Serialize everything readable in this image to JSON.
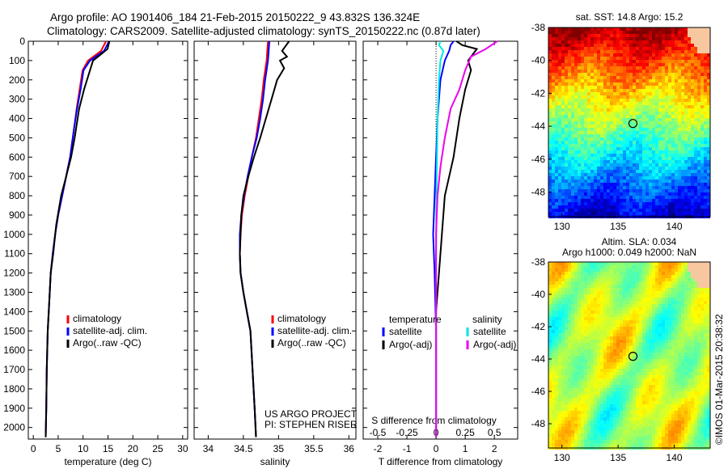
{
  "header": {
    "line1": "Argo profile: AO 1901406_184 21-Feb-2015 20150222_9 43.832S 136.324E",
    "line2": "Climatology: CARS2009. Satellite-adjusted climatology: synTS_20150222.nc (0.87d later)"
  },
  "colors": {
    "climatology": "#ff0000",
    "satellite": "#0000ff",
    "argo": "#000000",
    "salinity_sat": "#00e5e5",
    "salinity_argo": "#ee00ee"
  },
  "chart_data": [
    {
      "type": "line",
      "panel": "temperature",
      "xlabel": "temperature (deg C)",
      "ylabel": "",
      "xlim": [
        -1,
        31
      ],
      "ylim": [
        2060,
        0
      ],
      "xticks": [
        "0",
        "5",
        "10",
        "15",
        "20",
        "25",
        "30"
      ],
      "yticks": [
        "0",
        "100",
        "200",
        "300",
        "400",
        "500",
        "600",
        "700",
        "800",
        "900",
        "1000",
        "1100",
        "1200",
        "1300",
        "1400",
        "1500",
        "1600",
        "1700",
        "1800",
        "1900",
        "2000"
      ],
      "legend": [
        "climatology",
        "satellite-adj. clim.",
        "Argo(..raw -QC)"
      ],
      "series": [
        {
          "name": "climatology",
          "color": "#ff0000",
          "x": [
            14.6,
            14.2,
            13.6,
            11.0,
            9.9,
            9.3,
            8.7,
            8.2,
            7.4,
            6.6,
            5.8,
            5.0,
            4.4,
            3.9,
            3.5,
            3.2,
            2.9,
            2.7,
            2.6,
            2.5
          ],
          "y": [
            0,
            20,
            50,
            100,
            150,
            250,
            350,
            450,
            600,
            700,
            800,
            900,
            1000,
            1100,
            1200,
            1350,
            1500,
            1700,
            1900,
            2050
          ]
        },
        {
          "name": "satellite-adj. clim.",
          "color": "#0000ff",
          "x": [
            15.2,
            14.8,
            14.2,
            11.4,
            10.1,
            9.5,
            8.8,
            8.2,
            7.4,
            6.6,
            5.8,
            5.0,
            4.4,
            3.9,
            3.5,
            3.2,
            2.9,
            2.7,
            2.6,
            2.5
          ],
          "y": [
            0,
            20,
            50,
            100,
            150,
            250,
            350,
            450,
            600,
            700,
            800,
            900,
            1000,
            1100,
            1200,
            1350,
            1500,
            1700,
            1900,
            2050
          ]
        },
        {
          "name": "Argo(..raw -QC)",
          "color": "#000000",
          "x": [
            15.3,
            15.1,
            14.9,
            13.0,
            12.0,
            11.4,
            10.2,
            9.2,
            8.3,
            7.6,
            6.6,
            5.6,
            4.6,
            4.0,
            3.5,
            3.2,
            2.9,
            2.7,
            2.6,
            2.5
          ],
          "y": [
            0,
            20,
            40,
            80,
            100,
            150,
            250,
            350,
            500,
            600,
            700,
            800,
            950,
            1100,
            1200,
            1350,
            1500,
            1700,
            1900,
            2050
          ]
        }
      ]
    },
    {
      "type": "line",
      "panel": "salinity",
      "xlabel": "salinity",
      "ylabel": "",
      "xlim": [
        33.8,
        36.1
      ],
      "ylim": [
        2060,
        0
      ],
      "xticks": [
        "34",
        "34.5",
        "35",
        "35.5",
        "36"
      ],
      "legend": [
        "climatology",
        "satellite-adj. clim.",
        "Argo(..raw -QC)"
      ],
      "annotation": [
        "US ARGO PROJECT",
        "PI: STEPHEN RISER"
      ],
      "series": [
        {
          "name": "climatology",
          "color": "#ff0000",
          "x": [
            34.85,
            34.84,
            34.83,
            34.79,
            34.76,
            34.72,
            34.68,
            34.62,
            34.57,
            34.52,
            34.48,
            34.46,
            34.45,
            34.46,
            34.5,
            34.55,
            34.6,
            34.63,
            34.66,
            34.68
          ],
          "y": [
            0,
            50,
            100,
            200,
            300,
            400,
            500,
            600,
            700,
            800,
            900,
            1000,
            1100,
            1200,
            1300,
            1400,
            1500,
            1700,
            1900,
            2050
          ]
        },
        {
          "name": "satellite-adj. clim.",
          "color": "#0000ff",
          "x": [
            34.87,
            34.86,
            34.85,
            34.81,
            34.78,
            34.74,
            34.69,
            34.62,
            34.56,
            34.51,
            34.47,
            34.45,
            34.45,
            34.46,
            34.5,
            34.55,
            34.6,
            34.63,
            34.66,
            34.68
          ],
          "y": [
            0,
            50,
            100,
            200,
            300,
            400,
            500,
            600,
            700,
            800,
            900,
            1000,
            1100,
            1200,
            1300,
            1400,
            1500,
            1700,
            1900,
            2050
          ]
        },
        {
          "name": "Argo(..raw -QC)",
          "color": "#000000",
          "x": [
            35.15,
            35.05,
            35.12,
            35.02,
            35.08,
            34.98,
            34.9,
            34.82,
            34.74,
            34.65,
            34.57,
            34.5,
            34.47,
            34.46,
            34.45,
            34.46,
            34.5,
            34.55,
            34.6,
            34.63,
            34.66,
            34.68
          ],
          "y": [
            0,
            50,
            80,
            100,
            140,
            200,
            300,
            400,
            500,
            600,
            700,
            800,
            900,
            1000,
            1100,
            1200,
            1300,
            1400,
            1500,
            1700,
            1900,
            2050
          ]
        }
      ]
    },
    {
      "type": "line",
      "panel": "difference",
      "xlabel": "T difference from climatology",
      "xlabel_top": "S difference from climatology",
      "xlim": [
        -2.5,
        2.8
      ],
      "ylim": [
        2060,
        0
      ],
      "xticks": [
        "-2",
        "-1",
        "0",
        "1",
        "2"
      ],
      "xticks_top": [
        "-0.5",
        "-0.25",
        "0",
        "0.25",
        "0.5"
      ],
      "legend_titles": [
        "temperature",
        "salinity"
      ],
      "legend": [
        "satellite",
        "Argo(-adj)",
        "satellite",
        "Argo(-adj)"
      ],
      "series": [
        {
          "name": "T satellite",
          "color": "#0000ff",
          "x": [
            0.6,
            0.5,
            0.45,
            0.3,
            0.15,
            0.05,
            0.0,
            -0.05,
            -0.1,
            -0.05,
            0.0,
            0.0,
            0.0
          ],
          "y": [
            0,
            20,
            50,
            100,
            200,
            400,
            600,
            800,
            1000,
            1200,
            1500,
            1800,
            2050
          ]
        },
        {
          "name": "T Argo(-adj)",
          "color": "#000000",
          "x": [
            0.7,
            0.9,
            1.4,
            1.1,
            1.2,
            1.0,
            0.8,
            0.6,
            0.3,
            0.2,
            0.1,
            0.0,
            0.0,
            0.0
          ],
          "y": [
            0,
            20,
            40,
            100,
            150,
            250,
            400,
            600,
            800,
            1000,
            1200,
            1400,
            1700,
            2050
          ]
        },
        {
          "name": "S satellite",
          "color": "#00e5e5",
          "x": [
            0.15,
            0.1,
            0.25,
            0.15,
            0.1,
            0.05,
            0.03,
            0.01,
            0.0,
            0.0
          ],
          "y": [
            0,
            20,
            50,
            100,
            200,
            400,
            600,
            800,
            1100,
            2050
          ]
        },
        {
          "name": "S Argo(-adj)",
          "color": "#ee00ee",
          "x": [
            2.1,
            1.9,
            1.7,
            1.2,
            1.0,
            0.8,
            0.5,
            0.3,
            0.15,
            0.05,
            0.0,
            0.0
          ],
          "y": [
            0,
            20,
            40,
            80,
            150,
            250,
            350,
            500,
            650,
            800,
            1000,
            2050
          ]
        }
      ]
    }
  ],
  "maps": {
    "sst": {
      "title": "sat. SST: 14.8 Argo: 15.2",
      "yticks": [
        "-38",
        "-40",
        "-42",
        "-44",
        "-46",
        "-48"
      ],
      "xticks": [
        "130",
        "135",
        "140"
      ],
      "lat_range": [
        -38,
        -49.5
      ],
      "lon_range": [
        128.8,
        143.2
      ],
      "argo_position": {
        "lat": -43.832,
        "lon": 136.324
      }
    },
    "sla": {
      "title_line1": "Altim. SLA: 0.034",
      "title_line2": "Argo h1000: 0.049 h2000: NaN",
      "yticks": [
        "-38",
        "-40",
        "-42",
        "-44",
        "-46",
        "-48"
      ],
      "xticks": [
        "130",
        "135",
        "140"
      ],
      "lat_range": [
        -38,
        -49.5
      ],
      "lon_range": [
        128.8,
        143.2
      ],
      "argo_position": {
        "lat": -43.832,
        "lon": 136.324
      }
    }
  },
  "credit": "©IMOS 01-Mar-2015 20:38:32"
}
